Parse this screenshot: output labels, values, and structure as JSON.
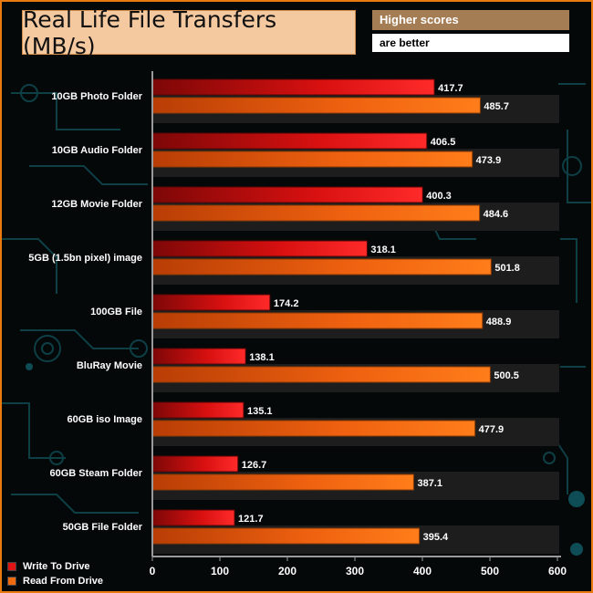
{
  "chart_data": {
    "type": "bar",
    "orientation": "horizontal",
    "title": "Real Life File Transfers (MB/s)",
    "notes": [
      "Higher scores",
      "are better"
    ],
    "categories": [
      "10GB Photo Folder",
      "10GB Audio Folder",
      "12GB Movie Folder",
      "5GB (1.5bn pixel) image",
      "100GB File",
      "BluRay Movie",
      "60GB iso Image",
      "60GB Steam Folder",
      "50GB File Folder"
    ],
    "series": [
      {
        "name": "Write To  Drive",
        "color": "#e01414",
        "values": [
          417.7,
          406.5,
          400.3,
          318.1,
          174.2,
          138.1,
          135.1,
          126.7,
          121.7
        ]
      },
      {
        "name": "Read From  Drive",
        "color": "#f06a10",
        "values": [
          485.7,
          473.9,
          484.6,
          501.8,
          488.9,
          500.5,
          477.9,
          387.1,
          395.4
        ]
      }
    ],
    "xlim": [
      0,
      600
    ],
    "xticks": [
      0,
      100,
      200,
      300,
      400,
      500,
      600
    ],
    "grid": false,
    "legend": "bottom-left"
  }
}
